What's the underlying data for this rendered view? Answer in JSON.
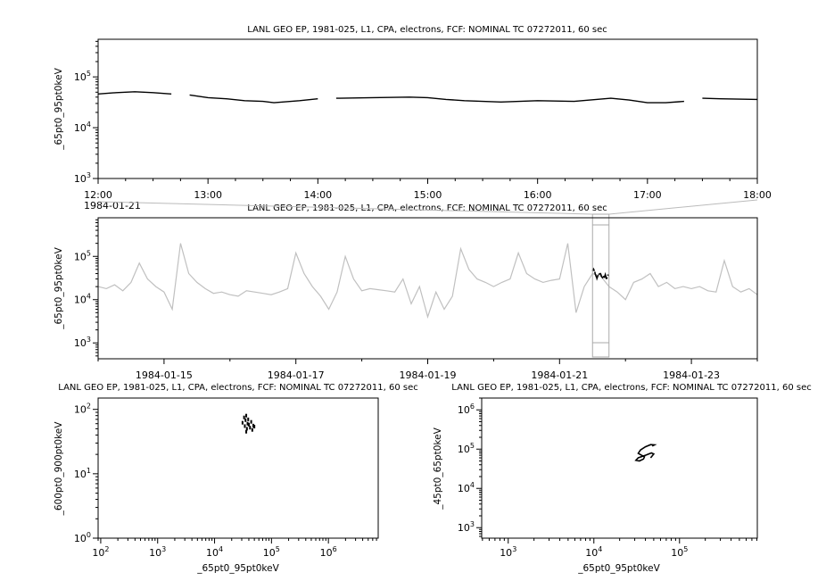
{
  "chart_data": [
    {
      "id": "p1",
      "type": "line",
      "title": "LANL GEO EP, 1981-025, L1, CPA, electrons, FCF: NOMINAL TC 07272011, 60 sec",
      "ylabel": "_65pt0_95pt0keV",
      "xlabel": "",
      "x_axis": "time",
      "xlim": [
        "1984-01-21T12:00",
        "1984-01-21T18:00"
      ],
      "x_ticks": [
        "12:00",
        "13:00",
        "14:00",
        "15:00",
        "16:00",
        "17:00",
        "18:00"
      ],
      "x_date_label": "1984-01-21",
      "yscale": "log",
      "ylim": [
        1000,
        550000
      ],
      "y_ticks": [
        1000,
        10000,
        100000
      ],
      "color": "#000000",
      "x": [
        "12:00",
        "12:10",
        "12:20",
        "12:30",
        "12:40",
        "12:45",
        "12:50",
        "13:00",
        "13:10",
        "13:20",
        "13:30",
        "13:36",
        "13:50",
        "14:00",
        "14:05",
        "14:10",
        "14:30",
        "14:50",
        "15:00",
        "15:10",
        "15:20",
        "15:40",
        "16:00",
        "16:20",
        "16:40",
        "16:50",
        "17:00",
        "17:10",
        "17:20",
        "17:25",
        "17:30",
        "17:40",
        "18:00"
      ],
      "values": [
        46000,
        49000,
        51000,
        49000,
        46000,
        null,
        44000,
        39000,
        37000,
        34000,
        33000,
        31000,
        34000,
        37000,
        null,
        38000,
        39000,
        40000,
        39000,
        36000,
        34000,
        32000,
        34000,
        33000,
        38000,
        35000,
        31000,
        31000,
        33000,
        null,
        38000,
        37000,
        36000
      ]
    },
    {
      "id": "p2",
      "type": "line",
      "title": "LANL GEO EP, 1981-025, L1, CPA, electrons, FCF: NOMINAL TC 07272011, 60 sec",
      "ylabel": "_65pt0_95pt0keV",
      "xlabel": "",
      "x_axis": "time",
      "xlim": [
        "1984-01-14T00:00",
        "1984-01-24T00:00"
      ],
      "x_ticks": [
        "1984-01-15",
        "1984-01-17",
        "1984-01-19",
        "1984-01-21",
        "1984-01-23"
      ],
      "x_step_hours": 3,
      "yscale": "log",
      "ylim": [
        430,
        780000
      ],
      "y_ticks": [
        1000,
        10000,
        100000
      ],
      "color": "#c0c0c0",
      "highlight_range": [
        "1984-01-21T12:00",
        "1984-01-21T18:00"
      ],
      "values": [
        20000,
        18000,
        22000,
        16000,
        25000,
        70000,
        30000,
        20000,
        15000,
        6000,
        200000,
        40000,
        25000,
        18000,
        14000,
        15000,
        13000,
        12000,
        16000,
        15000,
        14000,
        13000,
        15000,
        18000,
        120000,
        40000,
        20000,
        12000,
        6000,
        15000,
        100000,
        30000,
        16000,
        18000,
        17000,
        16000,
        15000,
        30000,
        8000,
        20000,
        4000,
        15000,
        6000,
        12000,
        150000,
        50000,
        30000,
        25000,
        20000,
        25000,
        30000,
        120000,
        40000,
        30000,
        25000,
        28000,
        30000,
        200000,
        5000,
        20000,
        40000,
        35000,
        20000,
        15000,
        10000,
        25000,
        30000,
        40000,
        20000,
        25000,
        18000,
        20000,
        18000,
        20000,
        16000,
        15000,
        80000,
        20000,
        15000,
        18000,
        13000
      ]
    },
    {
      "id": "p3",
      "type": "scatter",
      "title": "LANL GEO EP, 1981-025, L1, CPA, electrons, FCF: NOMINAL TC 07272011, 60 sec",
      "xlabel": "_65pt0_95pt0keV",
      "ylabel": "_600pt0_900pt0keV",
      "xscale": "log",
      "yscale": "log",
      "xlim": [
        90,
        7500000
      ],
      "ylim": [
        1,
        150
      ],
      "x_ticks": [
        100,
        1000,
        10000,
        100000,
        1000000
      ],
      "y_ticks": [
        1,
        10,
        100
      ],
      "points": [
        [
          31000,
          62
        ],
        [
          33000,
          75
        ],
        [
          34000,
          55
        ],
        [
          35000,
          68
        ],
        [
          36000,
          80
        ],
        [
          37000,
          50
        ],
        [
          38000,
          60
        ],
        [
          40000,
          58
        ],
        [
          42000,
          52
        ],
        [
          44000,
          64
        ],
        [
          46000,
          48
        ],
        [
          48000,
          56
        ],
        [
          50000,
          54
        ],
        [
          36000,
          45
        ],
        [
          39000,
          70
        ]
      ]
    },
    {
      "id": "p4",
      "type": "line",
      "title": "LANL GEO EP, 1981-025, L1, CPA, electrons, FCF: NOMINAL TC 07272011, 60 sec",
      "xlabel": "_65pt0_95pt0keV",
      "ylabel": "_45pt0_65pt0keV",
      "xscale": "log",
      "yscale": "log",
      "xlim": [
        490,
        810000
      ],
      "ylim": [
        540,
        2000000
      ],
      "x_ticks": [
        1000,
        10000,
        100000
      ],
      "y_ticks": [
        1000,
        10000,
        100000,
        1000000
      ],
      "points": [
        [
          46000,
          60000
        ],
        [
          50000,
          75000
        ],
        [
          47000,
          80000
        ],
        [
          40000,
          70000
        ],
        [
          33000,
          60000
        ],
        [
          31000,
          52000
        ],
        [
          34000,
          50000
        ],
        [
          38000,
          56000
        ],
        [
          39000,
          64000
        ],
        [
          36000,
          70000
        ],
        [
          33000,
          78000
        ],
        [
          35000,
          95000
        ],
        [
          40000,
          115000
        ],
        [
          46000,
          130000
        ],
        [
          51000,
          128000
        ],
        [
          48000,
          120000
        ]
      ]
    }
  ]
}
